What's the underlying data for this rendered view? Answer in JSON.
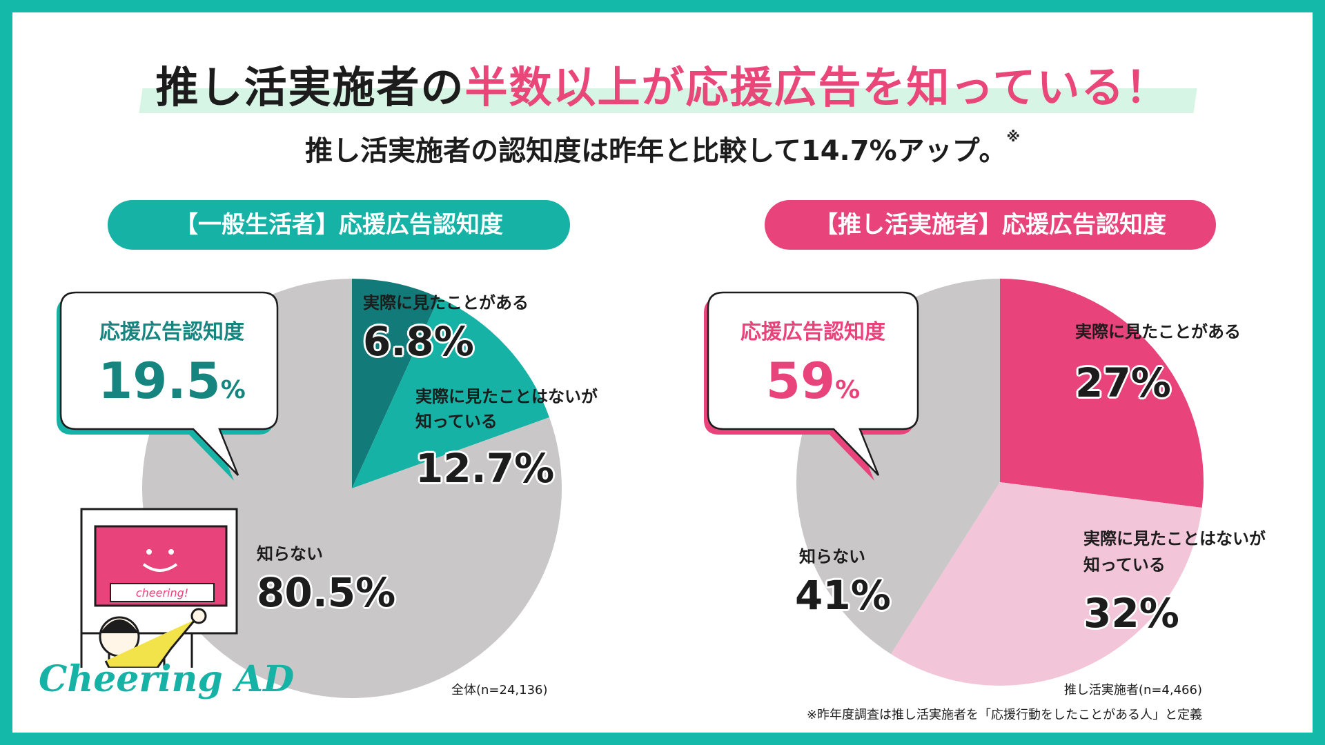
{
  "title": {
    "part1": "推し活実施者の",
    "accent": "半数以上が応援広告を知っている！"
  },
  "subtitle": {
    "text": "推し活実施者の認知度は昨年と比較して14.7%アップ。",
    "mark": "※"
  },
  "brand": "Cheering AD",
  "illustration": {
    "sign_text": "cheering!"
  },
  "colors": {
    "teal_dark": "#137a7a",
    "teal": "#16b2a6",
    "gray": "#c9c7c8",
    "pink": "#e8437a",
    "pink_light": "#f2c6d8",
    "title_accent": "#e9467a"
  },
  "chart_data": [
    {
      "type": "pie",
      "title": "【一般生活者】応援広告認知度",
      "slices": [
        {
          "label": "実際に見たことがある",
          "value": 6.8,
          "display": "6.8%"
        },
        {
          "label": "実際に見たことはないが知っている",
          "label_lines": [
            "実際に見たことはないが",
            "知っている"
          ],
          "value": 12.7,
          "display": "12.7%"
        },
        {
          "label": "知らない",
          "value": 80.5,
          "display": "80.5%"
        }
      ],
      "callout": {
        "label": "応援広告認知度",
        "value": "19.5",
        "unit": "%"
      },
      "note": "全体(n=24,136)"
    },
    {
      "type": "pie",
      "title": "【推し活実施者】応援広告認知度",
      "slices": [
        {
          "label": "実際に見たことがある",
          "value": 27,
          "display": "27%"
        },
        {
          "label": "実際に見たことはないが知っている",
          "label_lines": [
            "実際に見たことはないが",
            "知っている"
          ],
          "value": 32,
          "display": "32%"
        },
        {
          "label": "知らない",
          "value": 41,
          "display": "41%"
        }
      ],
      "callout": {
        "label": "応援広告認知度",
        "value": "59",
        "unit": "%"
      },
      "note": "推し活実施者(n=4,466)"
    }
  ],
  "footnote": "※昨年度調査は推し活実施者を「応援行動をしたことがある人」と定義"
}
